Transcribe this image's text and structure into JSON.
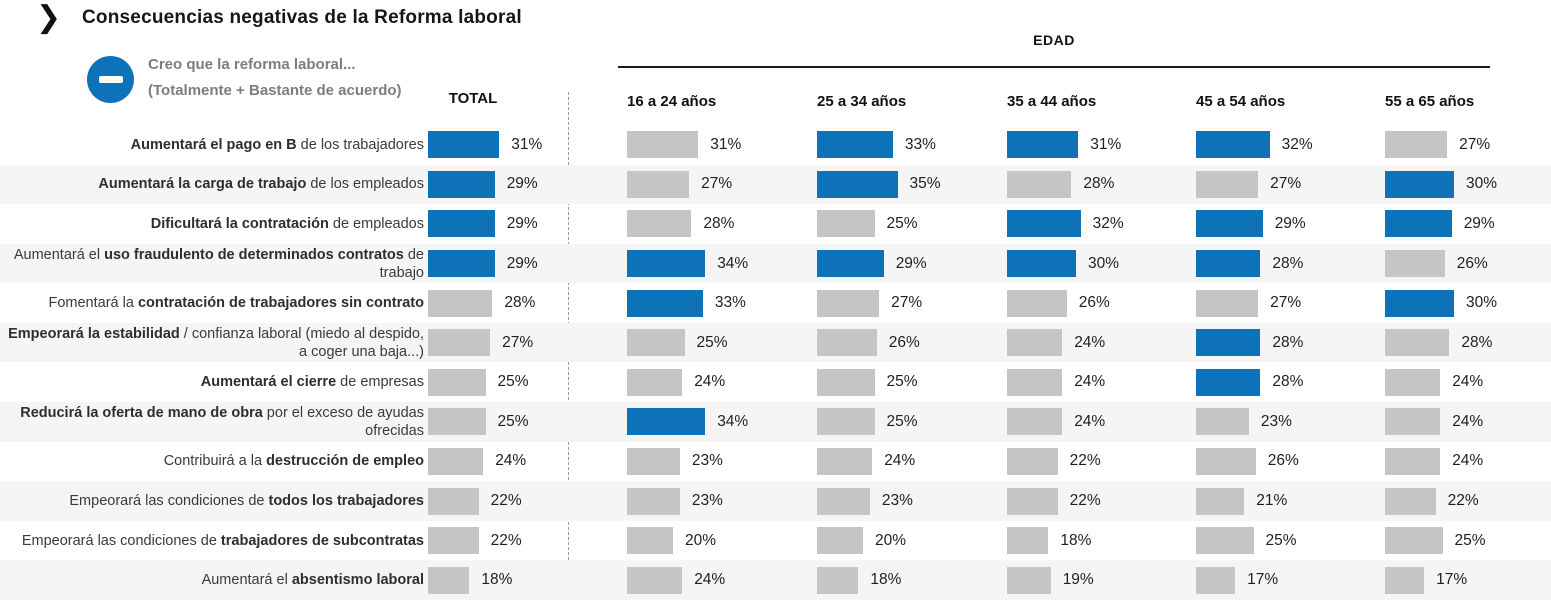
{
  "title": "Consecuencias negativas de la Reforma laboral",
  "header": {
    "chevron_icon": "❯"
  },
  "legend": {
    "line1": "Creo que la reforma laboral...",
    "line2": "(Totalmente + Bastante de acuerdo)",
    "minus_icon": "minus"
  },
  "columns": {
    "total": "TOTAL",
    "group": "EDAD",
    "ages": [
      "16 a 24 años",
      "25 a 34 años",
      "35 a 44 años",
      "45 a 54 años",
      "55 a 65 años"
    ]
  },
  "colors": {
    "highlight": "#0d72b8",
    "neutral": "#c5c5c5",
    "stripe": "#f5f5f5"
  },
  "chart_data": {
    "type": "bar",
    "orientation": "horizontal",
    "unit": "%",
    "xlim": [
      0,
      40
    ],
    "columns": [
      "TOTAL",
      "16 a 24 años",
      "25 a 34 años",
      "35 a 44 años",
      "45 a 54 años",
      "55 a 65 años"
    ],
    "rows": [
      {
        "label_parts": [
          {
            "t": "Aumentará el pago en B",
            "b": true
          },
          {
            "t": " de los trabajadores",
            "b": false
          }
        ],
        "values": [
          31,
          31,
          33,
          31,
          32,
          27
        ],
        "highlight": [
          true,
          false,
          true,
          true,
          true,
          false
        ]
      },
      {
        "label_parts": [
          {
            "t": "Aumentará la carga de trabajo",
            "b": true
          },
          {
            "t": " de los empleados",
            "b": false
          }
        ],
        "values": [
          29,
          27,
          35,
          28,
          27,
          30
        ],
        "highlight": [
          true,
          false,
          true,
          false,
          false,
          true
        ]
      },
      {
        "label_parts": [
          {
            "t": "Dificultará la contratación",
            "b": true
          },
          {
            "t": " de empleados",
            "b": false
          }
        ],
        "values": [
          29,
          28,
          25,
          32,
          29,
          29
        ],
        "highlight": [
          true,
          false,
          false,
          true,
          true,
          true
        ]
      },
      {
        "label_parts": [
          {
            "t": "Aumentará el ",
            "b": false
          },
          {
            "t": "uso fraudulento de determinados contratos",
            "b": true
          },
          {
            "t": " de trabajo",
            "b": false
          }
        ],
        "values": [
          29,
          34,
          29,
          30,
          28,
          26
        ],
        "highlight": [
          true,
          true,
          true,
          true,
          true,
          false
        ]
      },
      {
        "label_parts": [
          {
            "t": "Fomentará la ",
            "b": false
          },
          {
            "t": "contratación de trabajadores sin contrato",
            "b": true
          }
        ],
        "values": [
          28,
          33,
          27,
          26,
          27,
          30
        ],
        "highlight": [
          false,
          true,
          false,
          false,
          false,
          true
        ]
      },
      {
        "label_parts": [
          {
            "t": "Empeorará la estabilidad",
            "b": true
          },
          {
            "t": " / confianza laboral (miedo al despido, a coger una baja...)",
            "b": false
          }
        ],
        "values": [
          27,
          25,
          26,
          24,
          28,
          28
        ],
        "highlight": [
          false,
          false,
          false,
          false,
          true,
          false
        ]
      },
      {
        "label_parts": [
          {
            "t": "Aumentará el cierre",
            "b": true
          },
          {
            "t": " de empresas",
            "b": false
          }
        ],
        "values": [
          25,
          24,
          25,
          24,
          28,
          24
        ],
        "highlight": [
          false,
          false,
          false,
          false,
          true,
          false
        ]
      },
      {
        "label_parts": [
          {
            "t": "Reducirá la oferta de mano de obra",
            "b": true
          },
          {
            "t": " por el exceso de ayudas ofrecidas",
            "b": false
          }
        ],
        "values": [
          25,
          34,
          25,
          24,
          23,
          24
        ],
        "highlight": [
          false,
          true,
          false,
          false,
          false,
          false
        ]
      },
      {
        "label_parts": [
          {
            "t": "Contribuirá a la ",
            "b": false
          },
          {
            "t": "destrucción de empleo",
            "b": true
          }
        ],
        "values": [
          24,
          23,
          24,
          22,
          26,
          24
        ],
        "highlight": [
          false,
          false,
          false,
          false,
          false,
          false
        ]
      },
      {
        "label_parts": [
          {
            "t": "Empeorará las condiciones de ",
            "b": false
          },
          {
            "t": "todos los trabajadores",
            "b": true
          }
        ],
        "values": [
          22,
          23,
          23,
          22,
          21,
          22
        ],
        "highlight": [
          false,
          false,
          false,
          false,
          false,
          false
        ]
      },
      {
        "label_parts": [
          {
            "t": "Empeorará las condiciones de ",
            "b": false
          },
          {
            "t": "trabajadores de subcontratas",
            "b": true
          }
        ],
        "values": [
          22,
          20,
          20,
          18,
          25,
          25
        ],
        "highlight": [
          false,
          false,
          false,
          false,
          false,
          false
        ]
      },
      {
        "label_parts": [
          {
            "t": "Aumentará el ",
            "b": false
          },
          {
            "t": "absentismo laboral",
            "b": true
          }
        ],
        "values": [
          18,
          24,
          18,
          19,
          17,
          17
        ],
        "highlight": [
          false,
          false,
          false,
          false,
          false,
          false
        ]
      }
    ]
  }
}
